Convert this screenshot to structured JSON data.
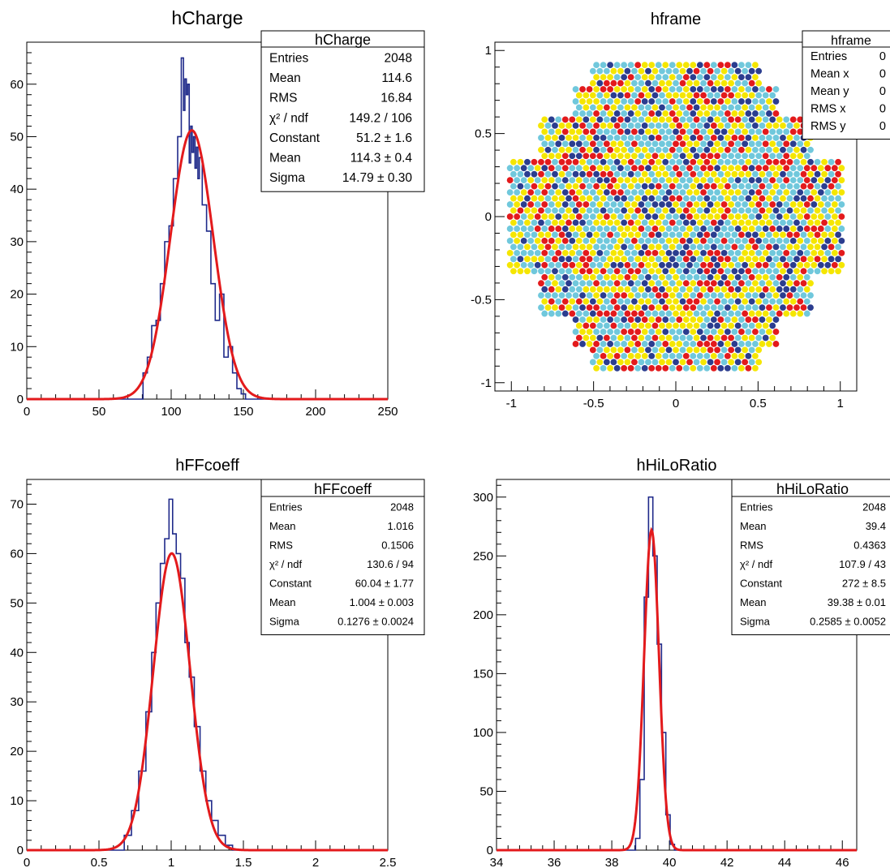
{
  "chart_data": [
    {
      "id": "hCharge",
      "type": "histogram",
      "title": "hCharge",
      "xlim": [
        0,
        250
      ],
      "ylim": [
        0,
        68
      ],
      "x_ticks": [
        "0",
        "50",
        "100",
        "150",
        "200",
        "250"
      ],
      "y_ticks": [
        "0",
        "10",
        "20",
        "30",
        "40",
        "50",
        "60"
      ],
      "x_tick_values": [
        0,
        50,
        100,
        150,
        200,
        250
      ],
      "y_tick_values": [
        0,
        10,
        20,
        30,
        40,
        50,
        60
      ],
      "histogram": {
        "bin_centers": [
          82,
          85,
          88,
          91,
          94,
          97,
          100,
          103,
          106,
          108,
          109,
          110,
          111,
          112,
          113,
          114,
          115,
          116,
          117,
          118,
          119,
          120,
          123,
          126,
          129,
          132,
          135,
          138,
          141,
          144,
          147,
          150
        ],
        "values": [
          5,
          8,
          14,
          15,
          22,
          30,
          33,
          42,
          50,
          65,
          55,
          61,
          58,
          60,
          45,
          52,
          47,
          50,
          44,
          48,
          42,
          46,
          37,
          32,
          22,
          15,
          20,
          8,
          10,
          5,
          2,
          1
        ],
        "color": "#1f2a8a"
      },
      "fit": {
        "function": "gaus",
        "constant": 51.2,
        "mean": 114.3,
        "sigma": 14.79,
        "color": "#e31a1c"
      },
      "stats": {
        "title": "hCharge",
        "rows": [
          {
            "label": "Entries",
            "value": "2048"
          },
          {
            "label": "Mean",
            "value": "114.6"
          },
          {
            "label": "RMS",
            "value": "16.84"
          },
          {
            "label": "χ² / ndf",
            "value": "149.2 / 106"
          },
          {
            "label": "Constant",
            "value": "51.2 ± 1.6"
          },
          {
            "label": "Mean",
            "value": "114.3 ± 0.4"
          },
          {
            "label": "Sigma",
            "value": "14.79 ± 0.30"
          }
        ]
      }
    },
    {
      "id": "hframe",
      "type": "scatter",
      "title": "hframe",
      "xlim": [
        -1.1,
        1.1
      ],
      "ylim": [
        -1.05,
        1.05
      ],
      "x_ticks": [
        "-1",
        "-0.5",
        "0",
        "0.5",
        "1"
      ],
      "y_ticks": [
        "-1",
        "-0.5",
        "0",
        "0.5",
        "1"
      ],
      "x_tick_values": [
        -1,
        -0.5,
        0,
        0.5,
        1
      ],
      "y_tick_values": [
        -1,
        -0.5,
        0,
        0.5,
        1
      ],
      "palette": [
        "#70c8dc",
        "#f5e600",
        "#e31a1c",
        "#2b3d8f"
      ],
      "stats": {
        "title": "hframe",
        "rows": [
          {
            "label": "Entries",
            "value": "0"
          },
          {
            "label": "Mean x",
            "value": "0"
          },
          {
            "label": "Mean y",
            "value": "0"
          },
          {
            "label": "RMS x",
            "value": "0"
          },
          {
            "label": "RMS y",
            "value": "0"
          }
        ]
      }
    },
    {
      "id": "hFFcoeff",
      "type": "histogram",
      "title": "hFFcoeff",
      "xlim": [
        0,
        2.5
      ],
      "ylim": [
        0,
        75
      ],
      "x_ticks": [
        "0",
        "0.5",
        "1",
        "1.5",
        "2",
        "2.5"
      ],
      "y_ticks": [
        "0",
        "10",
        "20",
        "30",
        "40",
        "50",
        "60",
        "70"
      ],
      "x_tick_values": [
        0,
        0.5,
        1,
        1.5,
        2,
        2.5
      ],
      "y_tick_values": [
        0,
        10,
        20,
        30,
        40,
        50,
        60,
        70
      ],
      "histogram": {
        "bin_centers": [
          0.7,
          0.75,
          0.8,
          0.85,
          0.88,
          0.91,
          0.94,
          0.97,
          1.0,
          1.02,
          1.05,
          1.08,
          1.11,
          1.14,
          1.18,
          1.22,
          1.26,
          1.3,
          1.35,
          1.4
        ],
        "values": [
          3,
          8,
          16,
          28,
          40,
          50,
          58,
          63,
          71,
          64,
          60,
          55,
          42,
          35,
          25,
          16,
          10,
          6,
          3,
          1
        ],
        "color": "#1f2a8a"
      },
      "fit": {
        "function": "gaus",
        "constant": 60.04,
        "mean": 1.004,
        "sigma": 0.1276,
        "color": "#e31a1c"
      },
      "stats": {
        "title": "hFFcoeff",
        "rows": [
          {
            "label": "Entries",
            "value": "2048"
          },
          {
            "label": "Mean",
            "value": "1.016"
          },
          {
            "label": "RMS",
            "value": "0.1506"
          },
          {
            "label": "χ² / ndf",
            "value": "130.6 / 94"
          },
          {
            "label": "Constant",
            "value": "60.04 ± 1.77"
          },
          {
            "label": "Mean",
            "value": "1.004 ± 0.003"
          },
          {
            "label": "Sigma",
            "value": "0.1276 ± 0.0024"
          }
        ]
      }
    },
    {
      "id": "hHiLoRatio",
      "type": "histogram",
      "title": "hHiLoRatio",
      "xlim": [
        34,
        46.5
      ],
      "ylim": [
        0,
        315
      ],
      "x_ticks": [
        "34",
        "36",
        "38",
        "40",
        "42",
        "44",
        "46"
      ],
      "y_ticks": [
        "0",
        "50",
        "100",
        "150",
        "200",
        "250",
        "300"
      ],
      "x_tick_values": [
        34,
        36,
        38,
        40,
        42,
        44,
        46
      ],
      "y_tick_values": [
        0,
        50,
        100,
        150,
        200,
        250,
        300
      ],
      "histogram": {
        "bin_centers": [
          38.9,
          39.05,
          39.2,
          39.35,
          39.5,
          39.65,
          39.8,
          39.95,
          40.1
        ],
        "values": [
          10,
          60,
          215,
          300,
          250,
          175,
          100,
          30,
          5
        ],
        "color": "#1f2a8a"
      },
      "fit": {
        "function": "gaus",
        "constant": 272,
        "mean": 39.38,
        "sigma": 0.2585,
        "color": "#e31a1c"
      },
      "stats": {
        "title": "hHiLoRatio",
        "rows": [
          {
            "label": "Entries",
            "value": "2048"
          },
          {
            "label": "Mean",
            "value": "39.4"
          },
          {
            "label": "RMS",
            "value": "0.4363"
          },
          {
            "label": "χ² / ndf",
            "value": "107.9 / 43"
          },
          {
            "label": "Constant",
            "value": "272 ± 8.5"
          },
          {
            "label": "Mean",
            "value": "39.38 ± 0.01"
          },
          {
            "label": "Sigma",
            "value": "0.2585 ± 0.0052"
          }
        ]
      }
    }
  ]
}
